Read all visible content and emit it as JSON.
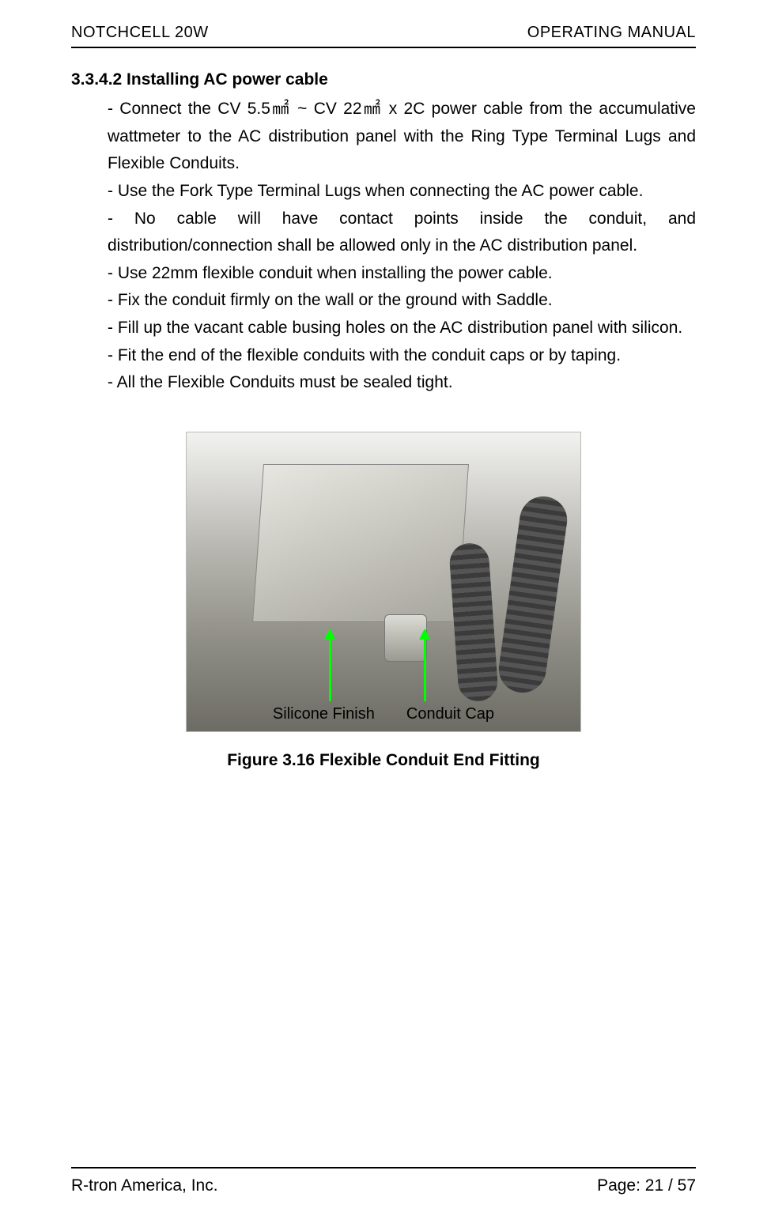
{
  "header": {
    "left": "NOTCHCELL 20W",
    "right": "OPERATING  MANUAL"
  },
  "section": {
    "number_title": "3.3.4.2 Installing AC power cable",
    "bullets": [
      "- Connect the CV 5.5㎟  ~ CV 22㎟  x 2C power cable from the accumulative wattmeter to the AC distribution panel with the Ring Type Terminal Lugs and Flexible Conduits.",
      "- Use the Fork Type Terminal Lugs when connecting the AC power cable.",
      "- No cable will have contact points inside the conduit, and distribution/connection shall be allowed only in the AC distribution panel.",
      "- Use 22mm flexible conduit when installing the power cable.",
      "- Fix the conduit firmly on the wall or the ground with Saddle.",
      "- Fill up the vacant cable busing holes on the AC distribution panel with silicon.",
      "- Fit the end of the flexible conduits with the conduit caps or by taping.",
      "- All the Flexible Conduits must be sealed tight."
    ]
  },
  "figure": {
    "label_left": "Silicone Finish",
    "label_right": "Conduit Cap",
    "caption": "Figure 3.16 Flexible Conduit End Fitting",
    "arrow_color": "#00ff00"
  },
  "footer": {
    "left": "R-tron America, Inc.",
    "right": "Page: 21 / 57"
  }
}
